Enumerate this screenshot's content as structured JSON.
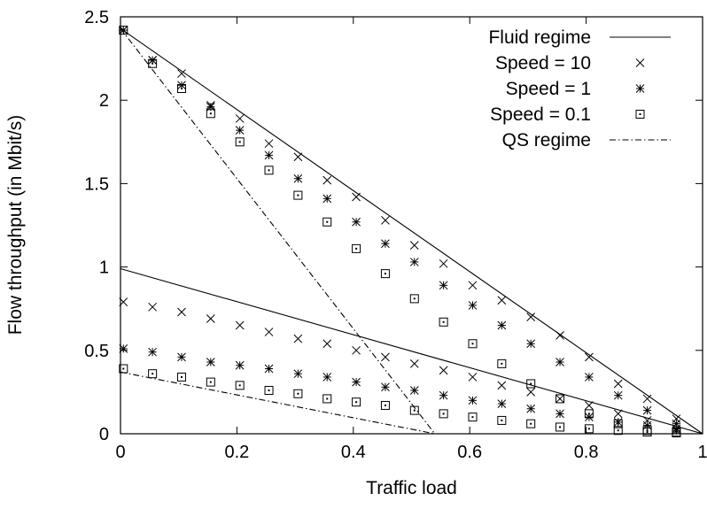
{
  "chart_data": {
    "type": "scatter",
    "xlabel": "Traffic load",
    "ylabel": "Flow throughput (in Mbit/s)",
    "xlim": [
      0,
      1
    ],
    "ylim": [
      0,
      2.5
    ],
    "x_ticks": [
      "0",
      "0.2",
      "0.4",
      "0.6",
      "0.8",
      "1"
    ],
    "y_ticks": [
      "0",
      "0.5",
      "1",
      "1.5",
      "2",
      "2.5"
    ],
    "legend_position": "top-right",
    "grid": false,
    "series": [
      {
        "name": "Fluid regime",
        "style": "solid-line",
        "curves": [
          [
            [
              0,
              2.43
            ],
            [
              1,
              0
            ]
          ],
          [
            [
              0,
              0.99
            ],
            [
              1,
              0
            ]
          ]
        ]
      },
      {
        "name": "Speed = 10",
        "marker": "x",
        "curves": [
          [
            [
              0.005,
              2.42
            ],
            [
              0.055,
              2.24
            ],
            [
              0.105,
              2.16
            ],
            [
              0.155,
              1.97
            ],
            [
              0.205,
              1.89
            ],
            [
              0.255,
              1.74
            ],
            [
              0.305,
              1.66
            ],
            [
              0.355,
              1.52
            ],
            [
              0.405,
              1.42
            ],
            [
              0.455,
              1.28
            ],
            [
              0.505,
              1.13
            ],
            [
              0.555,
              1.02
            ],
            [
              0.605,
              0.89
            ],
            [
              0.655,
              0.8
            ],
            [
              0.705,
              0.7
            ],
            [
              0.755,
              0.59
            ],
            [
              0.805,
              0.46
            ],
            [
              0.855,
              0.3
            ],
            [
              0.905,
              0.21
            ],
            [
              0.955,
              0.09
            ]
          ],
          [
            [
              0.005,
              0.79
            ],
            [
              0.055,
              0.76
            ],
            [
              0.105,
              0.73
            ],
            [
              0.155,
              0.69
            ],
            [
              0.205,
              0.65
            ],
            [
              0.255,
              0.61
            ],
            [
              0.305,
              0.57
            ],
            [
              0.355,
              0.54
            ],
            [
              0.405,
              0.5
            ],
            [
              0.455,
              0.46
            ],
            [
              0.505,
              0.42
            ],
            [
              0.555,
              0.38
            ],
            [
              0.605,
              0.34
            ],
            [
              0.655,
              0.29
            ],
            [
              0.705,
              0.25
            ],
            [
              0.755,
              0.21
            ],
            [
              0.805,
              0.17
            ],
            [
              0.855,
              0.12
            ],
            [
              0.905,
              0.08
            ],
            [
              0.955,
              0.03
            ]
          ]
        ]
      },
      {
        "name": "Speed = 1",
        "marker": "star",
        "curves": [
          [
            [
              0.005,
              2.42
            ],
            [
              0.055,
              2.24
            ],
            [
              0.105,
              2.09
            ],
            [
              0.155,
              1.96
            ],
            [
              0.205,
              1.82
            ],
            [
              0.255,
              1.67
            ],
            [
              0.305,
              1.53
            ],
            [
              0.355,
              1.41
            ],
            [
              0.405,
              1.27
            ],
            [
              0.455,
              1.14
            ],
            [
              0.505,
              1.03
            ],
            [
              0.555,
              0.89
            ],
            [
              0.605,
              0.77
            ],
            [
              0.655,
              0.65
            ],
            [
              0.705,
              0.54
            ],
            [
              0.755,
              0.43
            ],
            [
              0.805,
              0.34
            ],
            [
              0.855,
              0.23
            ],
            [
              0.905,
              0.14
            ],
            [
              0.955,
              0.06
            ]
          ],
          [
            [
              0.005,
              0.51
            ],
            [
              0.055,
              0.49
            ],
            [
              0.105,
              0.46
            ],
            [
              0.155,
              0.43
            ],
            [
              0.205,
              0.41
            ],
            [
              0.255,
              0.39
            ],
            [
              0.305,
              0.36
            ],
            [
              0.355,
              0.34
            ],
            [
              0.405,
              0.31
            ],
            [
              0.455,
              0.28
            ],
            [
              0.505,
              0.26
            ],
            [
              0.555,
              0.23
            ],
            [
              0.605,
              0.2
            ],
            [
              0.655,
              0.18
            ],
            [
              0.705,
              0.15
            ],
            [
              0.755,
              0.12
            ],
            [
              0.805,
              0.1
            ],
            [
              0.855,
              0.07
            ],
            [
              0.905,
              0.05
            ],
            [
              0.955,
              0.02
            ]
          ]
        ]
      },
      {
        "name": "Speed = 0.1",
        "marker": "square-dot",
        "curves": [
          [
            [
              0.005,
              2.42
            ],
            [
              0.055,
              2.22
            ],
            [
              0.105,
              2.07
            ],
            [
              0.155,
              1.92
            ],
            [
              0.205,
              1.75
            ],
            [
              0.255,
              1.58
            ],
            [
              0.305,
              1.43
            ],
            [
              0.355,
              1.27
            ],
            [
              0.405,
              1.11
            ],
            [
              0.455,
              0.96
            ],
            [
              0.505,
              0.81
            ],
            [
              0.555,
              0.67
            ],
            [
              0.605,
              0.54
            ],
            [
              0.655,
              0.42
            ],
            [
              0.705,
              0.3
            ],
            [
              0.755,
              0.21
            ],
            [
              0.805,
              0.12
            ],
            [
              0.855,
              0.06
            ],
            [
              0.905,
              0.02
            ],
            [
              0.955,
              0.01
            ]
          ],
          [
            [
              0.005,
              0.39
            ],
            [
              0.055,
              0.36
            ],
            [
              0.105,
              0.34
            ],
            [
              0.155,
              0.31
            ],
            [
              0.205,
              0.29
            ],
            [
              0.255,
              0.26
            ],
            [
              0.305,
              0.24
            ],
            [
              0.355,
              0.21
            ],
            [
              0.405,
              0.19
            ],
            [
              0.455,
              0.17
            ],
            [
              0.505,
              0.14
            ],
            [
              0.555,
              0.12
            ],
            [
              0.605,
              0.1
            ],
            [
              0.655,
              0.08
            ],
            [
              0.705,
              0.06
            ],
            [
              0.755,
              0.04
            ],
            [
              0.805,
              0.03
            ],
            [
              0.855,
              0.02
            ],
            [
              0.905,
              0.01
            ],
            [
              0.955,
              0.005
            ]
          ]
        ]
      },
      {
        "name": "QS regime",
        "style": "dash-dot-line",
        "curves": [
          [
            [
              0,
              2.43
            ],
            [
              0.54,
              0
            ]
          ],
          [
            [
              0,
              0.37
            ],
            [
              0.54,
              0
            ]
          ]
        ]
      }
    ]
  }
}
